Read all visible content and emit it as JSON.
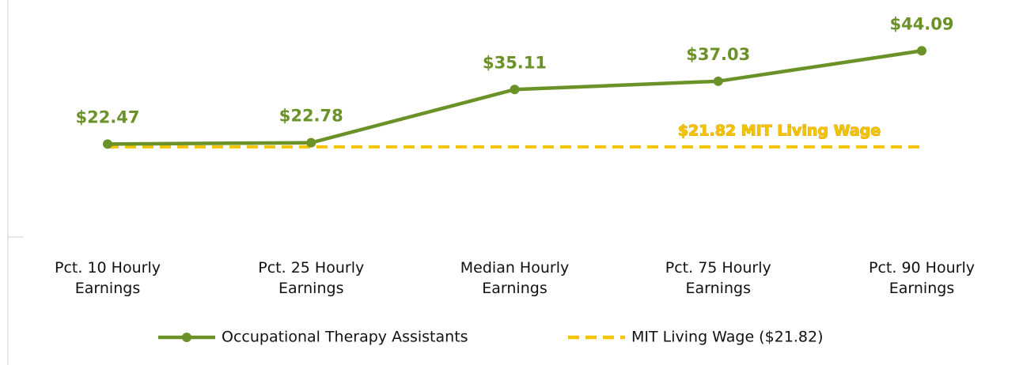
{
  "chart_data": {
    "type": "line",
    "categories": [
      "Pct. 10 Hourly Earnings",
      "Pct. 25 Hourly Earnings",
      "Median Hourly Earnings",
      "Pct. 75 Hourly Earnings",
      "Pct. 90 Hourly Earnings"
    ],
    "series": [
      {
        "name": "Occupational Therapy Assistants",
        "color": "#6b9228",
        "values": [
          22.47,
          22.78,
          35.11,
          37.03,
          44.09
        ],
        "value_labels": [
          "$22.47",
          "$22.78",
          "$35.11",
          "$37.03",
          "$44.09"
        ]
      },
      {
        "name": "MIT Living Wage ($21.82)",
        "color": "#f5c400",
        "values": [
          21.82,
          21.82,
          21.82,
          21.82,
          21.82
        ],
        "dashed": true
      }
    ],
    "annotation": "$21.82 MIT Living Wage",
    "ylim": [
      0,
      50
    ],
    "legend": "bottom"
  }
}
